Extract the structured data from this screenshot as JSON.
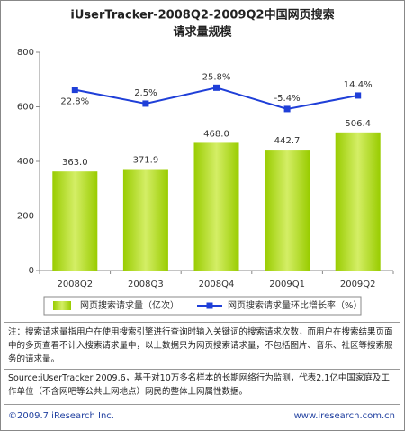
{
  "chart_data": {
    "type": "bar",
    "title": [
      "iUserTracker-2008Q2-2009Q2中国网页搜索",
      "请求量规模"
    ],
    "categories": [
      "2008Q2",
      "2008Q3",
      "2008Q4",
      "2009Q1",
      "2009Q2"
    ],
    "series": [
      {
        "name": "网页搜索请求量（亿次）",
        "type": "bar",
        "color": "#99cc00",
        "values": [
          363.0,
          371.9,
          468.0,
          442.7,
          506.4
        ],
        "value_labels": [
          "363.0",
          "371.9",
          "468.0",
          "442.7",
          "506.4"
        ]
      },
      {
        "name": "网页搜索请求量环比增长率（%）",
        "type": "line",
        "axis": "y2",
        "color": "#1f3fd8",
        "values": [
          22.8,
          2.5,
          25.8,
          -5.4,
          14.4
        ],
        "value_labels": [
          "22.8%",
          "2.5%",
          "25.8%",
          "-5.4%",
          "14.4%"
        ]
      }
    ],
    "ylim": [
      0,
      800
    ],
    "yticks": [
      0,
      200,
      400,
      600,
      800
    ],
    "y2lim": [
      -242.2,
      77.8
    ],
    "grid": false
  },
  "note": "注：搜索请求量指用户在使用搜索引擎进行查询时输入关键词的搜索请求次数，而用户在搜索结果页面中的多页查看不计入搜索请求量中，以上数据只为网页搜索请求量，不包括图片、音乐、社区等搜索服务的请求量。",
  "source": "Source:iUserTracker 2009.6，基于对10万多名样本的长期网络行为监测，代表2.1亿中国家庭及工作单位（不含网吧等公共上网地点）网民的整体上网属性数据。",
  "footer": {
    "copyright": "©2009.7 iResearch Inc.",
    "website": "www.iresearch.com.cn"
  }
}
